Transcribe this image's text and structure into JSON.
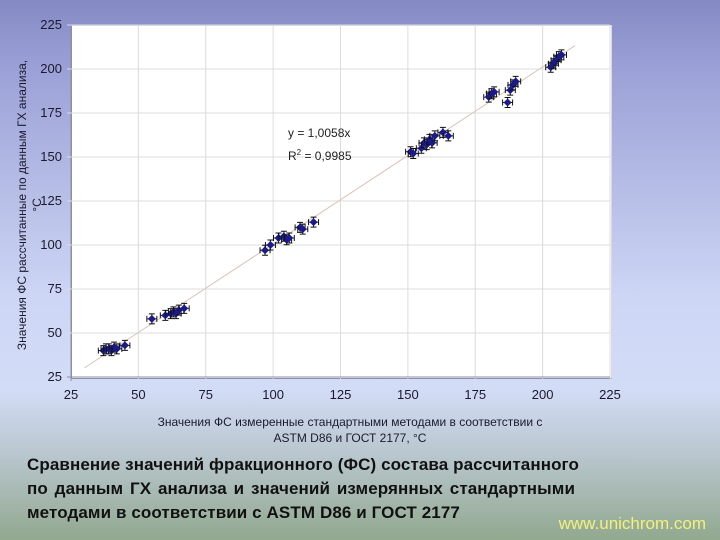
{
  "chart_data": {
    "type": "scatter",
    "title": "",
    "xlabel": "Значения ФС измеренные стандартными методами в соответствии с ASTM D86 и ГОСТ 2177, °C",
    "xlabel_lines": [
      "Значения ФС измеренные стандартными методами в соответствии с",
      "ASTM D86 и ГОСТ 2177, °C"
    ],
    "ylabel": "Значения ФС рассчитанные по данным ГХ анализа, °C",
    "ylabel_lines": [
      "Значения ФС рассчитанные по данным ГХ анализа,",
      "°C"
    ],
    "xlim": [
      25,
      225
    ],
    "ylim": [
      25,
      225
    ],
    "xticks": [
      25,
      50,
      75,
      100,
      125,
      150,
      175,
      200,
      225
    ],
    "yticks": [
      25,
      50,
      75,
      100,
      125,
      150,
      175,
      200,
      225
    ],
    "grid": true,
    "legend": null,
    "marker": "diamond with error bars",
    "marker_color": "#1a1a8c",
    "trendline": {
      "type": "linear-through-origin",
      "slope": 1.0058,
      "equation": "y = 1,0058x",
      "r2_label": "R",
      "r2_sup": "2",
      "r2_value": " = 0,9985",
      "color": "#d9c3b8"
    },
    "series": [
      {
        "name": "ФС",
        "points": [
          [
            37,
            40
          ],
          [
            38,
            41
          ],
          [
            39,
            41
          ],
          [
            40,
            40
          ],
          [
            41,
            42
          ],
          [
            42,
            41
          ],
          [
            45,
            43
          ],
          [
            55,
            58
          ],
          [
            60,
            60
          ],
          [
            62,
            61
          ],
          [
            63,
            62
          ],
          [
            64,
            61
          ],
          [
            65,
            63
          ],
          [
            67,
            64
          ],
          [
            97,
            97
          ],
          [
            99,
            100
          ],
          [
            102,
            104
          ],
          [
            104,
            105
          ],
          [
            105,
            103
          ],
          [
            106,
            104
          ],
          [
            110,
            110
          ],
          [
            111,
            109
          ],
          [
            115,
            113
          ],
          [
            151,
            153
          ],
          [
            152,
            152
          ],
          [
            155,
            155
          ],
          [
            156,
            158
          ],
          [
            157,
            157
          ],
          [
            158,
            160
          ],
          [
            159,
            158
          ],
          [
            160,
            162
          ],
          [
            163,
            164
          ],
          [
            165,
            162
          ],
          [
            180,
            184
          ],
          [
            181,
            186
          ],
          [
            182,
            187
          ],
          [
            187,
            181
          ],
          [
            188,
            188
          ],
          [
            189,
            191
          ],
          [
            190,
            193
          ],
          [
            203,
            201
          ],
          [
            204,
            203
          ],
          [
            205,
            205
          ],
          [
            206,
            207
          ],
          [
            207,
            208
          ]
        ]
      }
    ]
  },
  "equation_line1": "y = 1,0058x",
  "equation_r": "R",
  "equation_sup": "2",
  "equation_rest": " = 0,9985",
  "yticks_labels": [
    "225",
    "200",
    "175",
    "150",
    "125",
    "100",
    "75",
    "50",
    "25"
  ],
  "xticks_labels": [
    "25",
    "50",
    "75",
    "100",
    "125",
    "150",
    "175",
    "200",
    "225"
  ],
  "ylabel_line1": "Значения ФС рассчитанные по данным ГХ анализа,",
  "ylabel_line2": "°C",
  "xlabel_line1": "Значения ФС измеренные стандартными методами в соответствии с",
  "xlabel_line2": "ASTM D86 и ГОСТ 2177, °C",
  "caption": {
    "line1": "Сравнение значений фракционного (ФС) состава рассчитанного",
    "line2": "по данным  ГХ  анализа  и  значений  измерянных  стандартными",
    "line3": "методами в соответствии с ASTM D86 и ГОСТ 2177"
  },
  "watermark": "www.unichrom.com"
}
